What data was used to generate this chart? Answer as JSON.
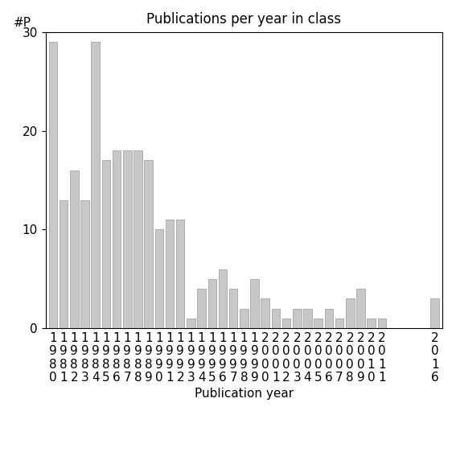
{
  "categories": [
    "1980",
    "1981",
    "1982",
    "1983",
    "1984",
    "1985",
    "1986",
    "1987",
    "1988",
    "1989",
    "1990",
    "1991",
    "1992",
    "1993",
    "1994",
    "1995",
    "1996",
    "1997",
    "1998",
    "1999",
    "2000",
    "2001",
    "2002",
    "2003",
    "2004",
    "2005",
    "2006",
    "2007",
    "2008",
    "2009",
    "2010",
    "2011",
    "2016"
  ],
  "values": [
    29,
    13,
    16,
    13,
    29,
    17,
    18,
    18,
    18,
    17,
    10,
    11,
    11,
    1,
    4,
    5,
    6,
    4,
    2,
    5,
    3,
    2,
    1,
    2,
    2,
    1,
    2,
    1,
    3,
    4,
    1,
    1,
    3
  ],
  "bar_color": "#c8c8c8",
  "bar_edgecolor": "#999999",
  "title": "Publications per year in class",
  "xlabel": "Publication year",
  "ylabel": "#P",
  "ylim": [
    0,
    30
  ],
  "yticks": [
    0,
    10,
    20,
    30
  ],
  "background_color": "#ffffff",
  "title_fontsize": 12,
  "label_fontsize": 11,
  "tick_fontsize": 11
}
